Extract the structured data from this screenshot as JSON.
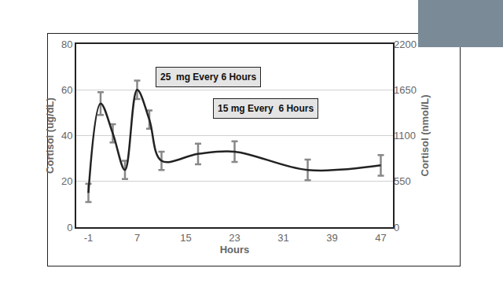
{
  "chart_data": {
    "type": "line",
    "x": [
      -1,
      1,
      3,
      5,
      7,
      9,
      11,
      17,
      23,
      35,
      47
    ],
    "values": [
      15,
      54,
      41,
      25,
      60,
      47,
      29,
      32,
      33,
      25,
      27
    ],
    "errors": [
      4,
      5,
      4,
      4,
      4,
      4,
      4,
      4.5,
      4.5,
      4.5,
      4.5
    ],
    "color": "#222222",
    "xlabel": "Hours",
    "ylabel": "Cortisol (ug/dL)",
    "y2label": "Cortisol (nmol/L)",
    "xlim": [
      -3,
      49
    ],
    "xticks": [
      -1,
      7,
      15,
      23,
      31,
      39,
      47
    ],
    "ylim": [
      0,
      80
    ],
    "yticks": [
      0,
      20,
      40,
      60,
      80
    ],
    "y2lim": [
      0,
      2200
    ],
    "y2ticks": [
      0,
      550,
      1100,
      1650,
      2200
    ],
    "annotations": [
      {
        "text": "25  mg Every 6 Hours"
      },
      {
        "text": "15 mg Every  6 Hours"
      }
    ],
    "grid": true
  }
}
